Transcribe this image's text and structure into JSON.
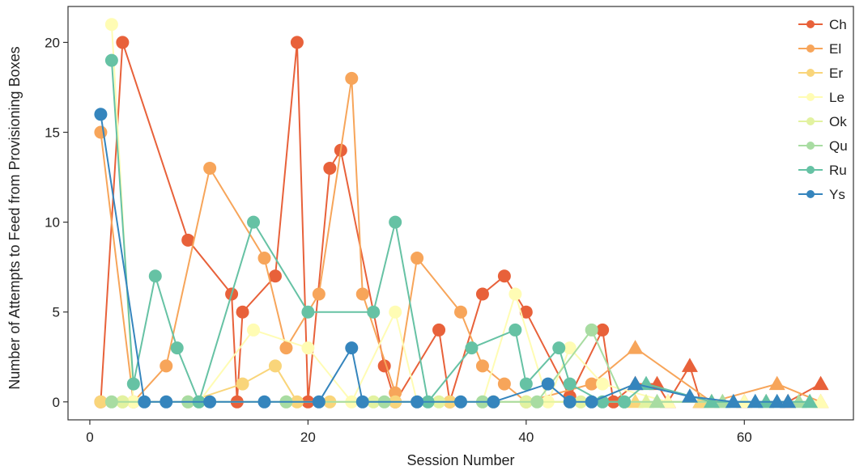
{
  "chart_data": {
    "type": "line",
    "xlabel": "Session Number",
    "ylabel": "Number of Attempts to Feed from Provisioning Boxes",
    "xlim": [
      -2,
      70
    ],
    "ylim": [
      -1,
      22
    ],
    "x_ticks": [
      0,
      20,
      40,
      60
    ],
    "y_ticks": [
      0,
      5,
      10,
      15,
      20
    ],
    "grid": false,
    "legend_position": "top-right",
    "series": [
      {
        "name": "Ch",
        "color": "#e8613a",
        "points": [
          [
            1,
            0
          ],
          [
            3,
            20
          ],
          [
            9,
            9
          ],
          [
            13,
            6
          ],
          [
            13.5,
            0
          ],
          [
            14,
            5
          ],
          [
            17,
            7
          ],
          [
            19,
            20
          ],
          [
            20,
            0
          ],
          [
            22,
            13
          ],
          [
            23,
            14
          ],
          [
            27,
            2
          ],
          [
            28,
            0
          ],
          [
            32,
            4
          ],
          [
            33,
            0
          ],
          [
            36,
            6
          ],
          [
            38,
            7
          ],
          [
            40,
            5
          ],
          [
            44,
            0.3
          ],
          [
            47,
            4
          ],
          [
            48,
            0
          ],
          [
            50,
            1
          ],
          [
            52,
            1
          ],
          [
            53,
            0
          ],
          [
            55,
            2
          ],
          [
            56,
            0
          ],
          [
            60,
            0
          ],
          [
            64,
            0
          ],
          [
            67,
            1
          ]
        ]
      },
      {
        "name": "El",
        "color": "#f7a55a",
        "points": [
          [
            1,
            15
          ],
          [
            4,
            0
          ],
          [
            7,
            2
          ],
          [
            11,
            13
          ],
          [
            16,
            8
          ],
          [
            18,
            3
          ],
          [
            21,
            6
          ],
          [
            24,
            18
          ],
          [
            25,
            6
          ],
          [
            28,
            0.5
          ],
          [
            30,
            8
          ],
          [
            34,
            5
          ],
          [
            36,
            2
          ],
          [
            38,
            1
          ],
          [
            40,
            0
          ],
          [
            46,
            1
          ],
          [
            50,
            3
          ],
          [
            57,
            0
          ],
          [
            63,
            1
          ],
          [
            67,
            0
          ]
        ]
      },
      {
        "name": "Er",
        "color": "#f9d57a",
        "points": [
          [
            1,
            0
          ],
          [
            3,
            0
          ],
          [
            9,
            0
          ],
          [
            14,
            1
          ],
          [
            17,
            2
          ],
          [
            19,
            0
          ],
          [
            22,
            0
          ],
          [
            28,
            0
          ],
          [
            33,
            0
          ],
          [
            37,
            0
          ],
          [
            44,
            0
          ],
          [
            50,
            0
          ],
          [
            56,
            0
          ],
          [
            62,
            0
          ],
          [
            67,
            0
          ]
        ]
      },
      {
        "name": "Le",
        "color": "#fffcb4",
        "points": [
          [
            2,
            21
          ],
          [
            4,
            0
          ],
          [
            10,
            0
          ],
          [
            15,
            4
          ],
          [
            20,
            3
          ],
          [
            24,
            0
          ],
          [
            28,
            5
          ],
          [
            30,
            0
          ],
          [
            36,
            0
          ],
          [
            39,
            6
          ],
          [
            42,
            0
          ],
          [
            44,
            3
          ],
          [
            47,
            1
          ],
          [
            53,
            0
          ],
          [
            57,
            0
          ],
          [
            60,
            0
          ],
          [
            67,
            0
          ]
        ]
      },
      {
        "name": "Ok",
        "color": "#e2f2a0",
        "points": [
          [
            3,
            0
          ],
          [
            10,
            0
          ],
          [
            18,
            0
          ],
          [
            26,
            0
          ],
          [
            32,
            0
          ],
          [
            40,
            0
          ],
          [
            45,
            0
          ],
          [
            51,
            0
          ],
          [
            58,
            0
          ],
          [
            66,
            0
          ]
        ]
      },
      {
        "name": "Qu",
        "color": "#a8dca2",
        "points": [
          [
            2,
            0
          ],
          [
            9,
            0
          ],
          [
            18,
            0
          ],
          [
            27,
            0
          ],
          [
            36,
            0
          ],
          [
            41,
            0
          ],
          [
            46,
            4
          ],
          [
            49,
            0
          ],
          [
            52,
            0
          ],
          [
            58,
            0
          ],
          [
            65,
            0
          ]
        ]
      },
      {
        "name": "Ru",
        "color": "#66c2a4",
        "points": [
          [
            2,
            19
          ],
          [
            4,
            1
          ],
          [
            6,
            7
          ],
          [
            8,
            3
          ],
          [
            10,
            0
          ],
          [
            15,
            10
          ],
          [
            20,
            5
          ],
          [
            26,
            5
          ],
          [
            28,
            10
          ],
          [
            31,
            0
          ],
          [
            35,
            3
          ],
          [
            39,
            4
          ],
          [
            40,
            1
          ],
          [
            43,
            3
          ],
          [
            44,
            1
          ],
          [
            47,
            0
          ],
          [
            49,
            0
          ],
          [
            51,
            1
          ],
          [
            57,
            0
          ],
          [
            62,
            0
          ],
          [
            66,
            0
          ]
        ]
      },
      {
        "name": "Ys",
        "color": "#3585bd",
        "points": [
          [
            1,
            16
          ],
          [
            5,
            0
          ],
          [
            7,
            0
          ],
          [
            11,
            0
          ],
          [
            16,
            0
          ],
          [
            21,
            0
          ],
          [
            24,
            3
          ],
          [
            25,
            0
          ],
          [
            30,
            0
          ],
          [
            34,
            0
          ],
          [
            37,
            0
          ],
          [
            42,
            1
          ],
          [
            44,
            0
          ],
          [
            46,
            0
          ],
          [
            50,
            1
          ],
          [
            55,
            0.3
          ],
          [
            59,
            0
          ],
          [
            61,
            0
          ],
          [
            63,
            0
          ],
          [
            64,
            0
          ]
        ]
      }
    ]
  }
}
